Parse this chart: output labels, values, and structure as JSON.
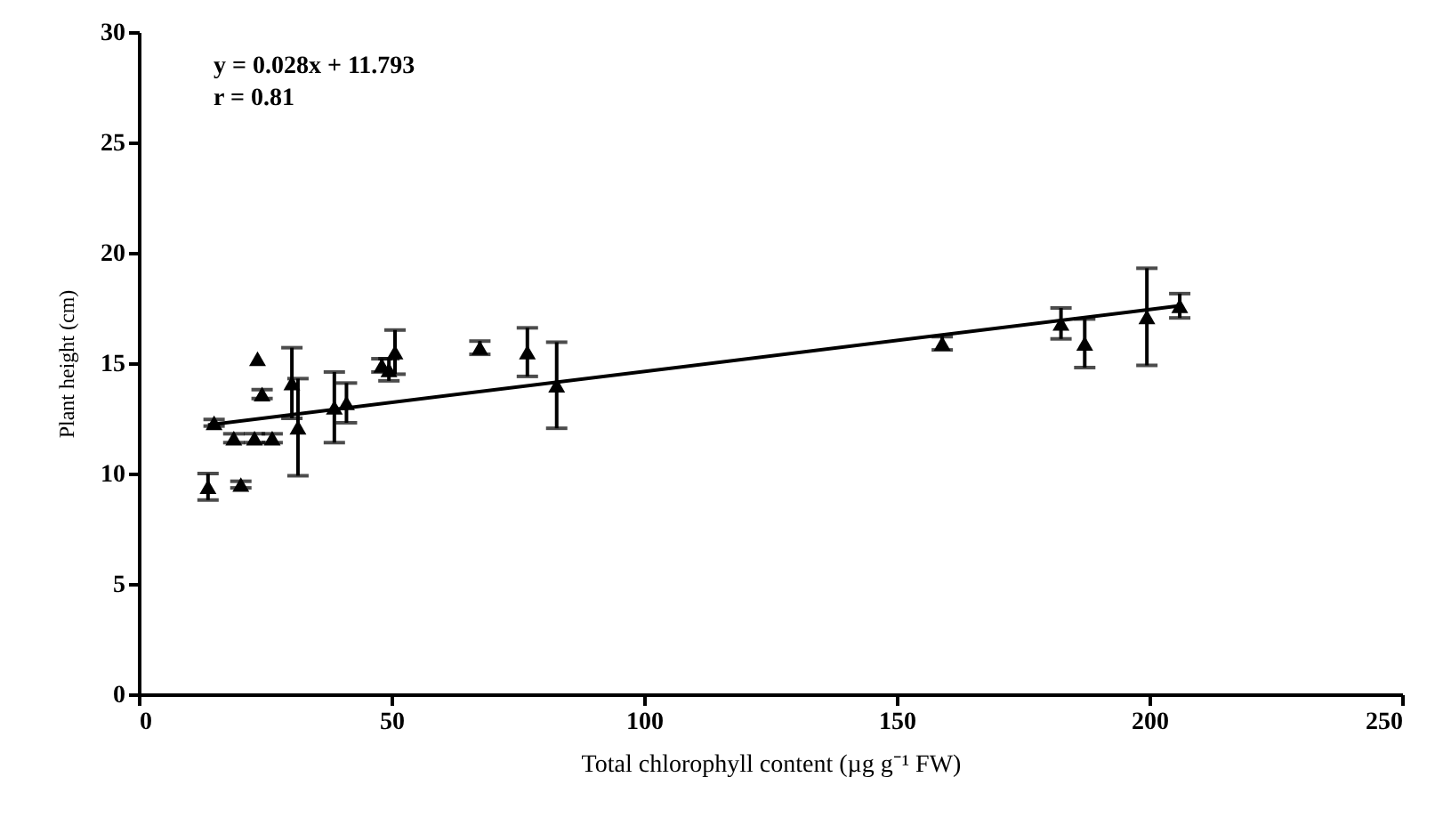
{
  "chart_data": {
    "type": "scatter",
    "xlabel": "Total chlorophyll content (µg g⁻¹ FW)",
    "ylabel": "Plant height (cm)",
    "annotations": [
      "y = 0.028x + 11.793",
      "r = 0.81"
    ],
    "xlim": [
      0,
      250
    ],
    "xticks": [
      0,
      50,
      100,
      150,
      200,
      250
    ],
    "ylim": [
      0,
      30
    ],
    "yticks": [
      0,
      5,
      10,
      15,
      20,
      25,
      30
    ],
    "grid": false,
    "series": [
      {
        "color": "#000000",
        "marker": "triangle",
        "x": [
          13.7,
          20.2,
          14.9,
          18.8,
          22.9,
          26.4,
          23.5,
          24.4,
          30.3,
          31.5,
          38.7,
          41.1,
          48.1,
          49.5,
          50.7,
          67.5,
          76.9,
          82.7,
          159,
          182.5,
          187.2,
          199.5,
          206
        ],
        "values": [
          9.4,
          9.5,
          12.3,
          11.6,
          11.6,
          11.6,
          15.2,
          13.6,
          14.1,
          12.1,
          13.0,
          13.2,
          14.9,
          14.7,
          15.5,
          15.7,
          15.5,
          14.0,
          15.9,
          16.8,
          15.9,
          17.1,
          17.6
        ],
        "errors": [
          0.6,
          0.15,
          0.15,
          0.2,
          0.2,
          0.2,
          null,
          0.2,
          1.6,
          2.2,
          1.6,
          0.9,
          0.3,
          0.5,
          1.0,
          0.3,
          1.1,
          1.95,
          0.3,
          0.7,
          1.1,
          2.2,
          0.55
        ]
      },
      {
        "type": "line",
        "color": "#000000",
        "marker": "none",
        "line_style": "solid",
        "x": [
          13.7,
          206
        ],
        "values": [
          12.2,
          17.6
        ]
      }
    ]
  }
}
